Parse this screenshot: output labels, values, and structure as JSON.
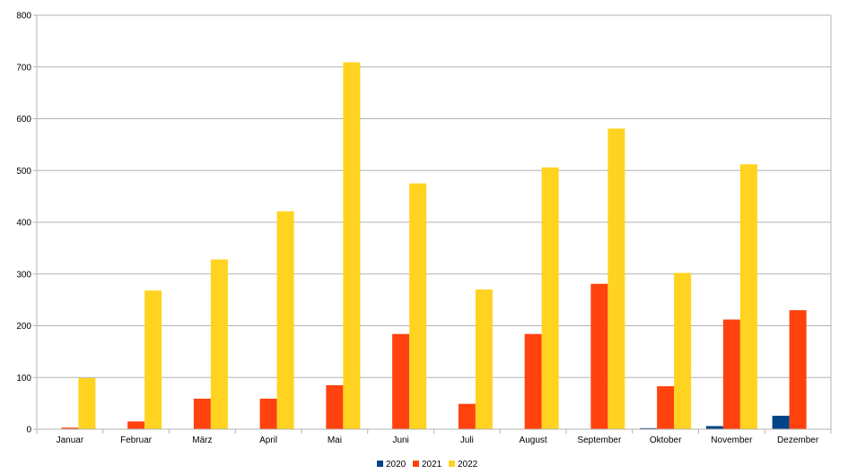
{
  "chart_data": {
    "type": "bar",
    "categories": [
      "Januar",
      "Februar",
      "März",
      "April",
      "Mai",
      "Juni",
      "Juli",
      "August",
      "September",
      "Oktober",
      "November",
      "Dezember"
    ],
    "series": [
      {
        "name": "2020",
        "color": "#004586",
        "values": [
          0,
          0,
          0,
          0,
          0,
          0,
          0,
          0,
          0,
          2,
          6,
          26
        ]
      },
      {
        "name": "2021",
        "color": "#FF420E",
        "values": [
          3,
          15,
          59,
          59,
          85,
          184,
          49,
          184,
          281,
          83,
          212,
          230
        ]
      },
      {
        "name": "2022",
        "color": "#FFD320",
        "values": [
          99,
          268,
          328,
          421,
          709,
          475,
          270,
          506,
          581,
          302,
          512,
          0
        ]
      }
    ],
    "yticks": [
      0,
      100,
      200,
      300,
      400,
      500,
      600,
      700,
      800
    ],
    "ylim": [
      0,
      800
    ],
    "grid": true,
    "legend": "bottom-center",
    "title": "",
    "xlabel": "",
    "ylabel": ""
  }
}
